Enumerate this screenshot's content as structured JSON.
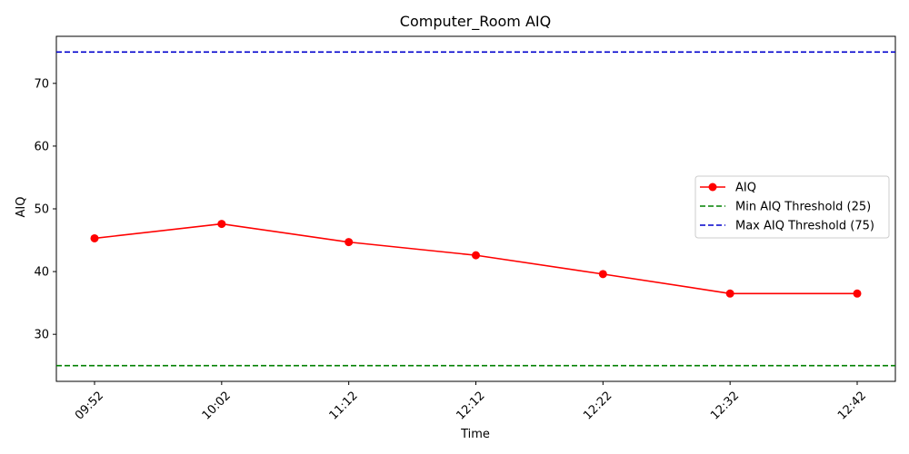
{
  "chart_data": {
    "type": "line",
    "title": "Computer_Room AIQ",
    "xlabel": "Time",
    "ylabel": "AIQ",
    "categories": [
      "09:52",
      "10:02",
      "11:12",
      "12:12",
      "12:22",
      "12:32",
      "12:42"
    ],
    "series": [
      {
        "name": "AIQ",
        "values": [
          45.3,
          47.6,
          44.7,
          42.6,
          39.6,
          36.5,
          36.5
        ],
        "color": "#ff0000",
        "marker": "circle",
        "line_style": "solid"
      }
    ],
    "thresholds": [
      {
        "name": "Min AIQ Threshold (25)",
        "value": 25,
        "color": "#008000",
        "line_style": "dashed"
      },
      {
        "name": "Max AIQ Threshold (75)",
        "value": 75,
        "color": "#0000cc",
        "line_style": "dashed"
      }
    ],
    "ylim": [
      22.5,
      77.5
    ],
    "yticks": [
      30,
      40,
      50,
      60,
      70
    ],
    "xtick_rotation": 45,
    "grid": false,
    "legend_position": "center-right"
  }
}
